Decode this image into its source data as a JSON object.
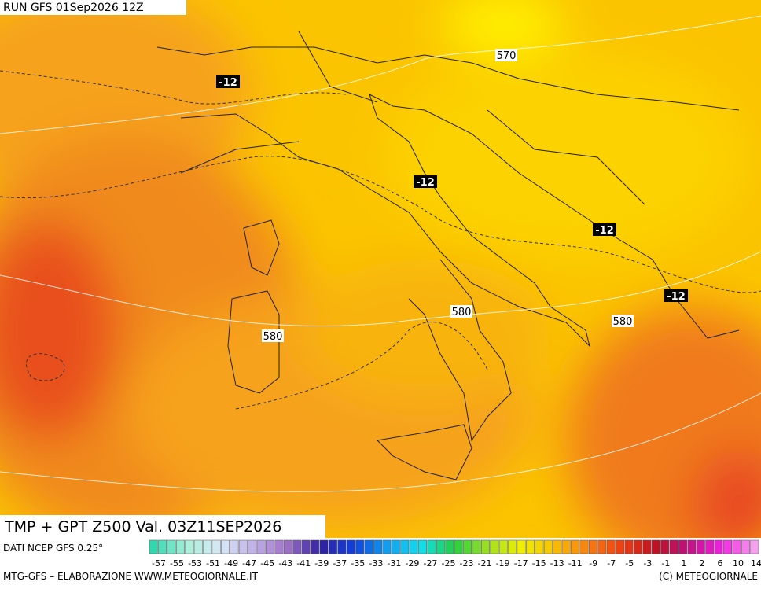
{
  "header": {
    "run": "RUN GFS 01Sep2026 12Z"
  },
  "map": {
    "temperature_labels": [
      "-12",
      "-12",
      "-12",
      "-12"
    ],
    "height_labels": [
      "570",
      "580",
      "580",
      "580"
    ]
  },
  "footer": {
    "title": "TMP + GPT Z500 Val. 03Z11SEP2026",
    "source": "DATI NCEP GFS 0.25°",
    "scale": [
      -57,
      -55,
      -53,
      -51,
      -49,
      -47,
      -45,
      -43,
      -41,
      -39,
      -37,
      -35,
      -33,
      -31,
      -29,
      -27,
      -25,
      -23,
      -21,
      -19,
      -17,
      -15,
      -13,
      -11,
      -9,
      -7,
      -5,
      -3,
      -1,
      1,
      2,
      6,
      10,
      14
    ],
    "credit_left": "MTG-GFS – ELABORAZIONE WWW.METEOGIORNALE.IT",
    "credit_right": "(C) METEOGIORNALE"
  }
}
